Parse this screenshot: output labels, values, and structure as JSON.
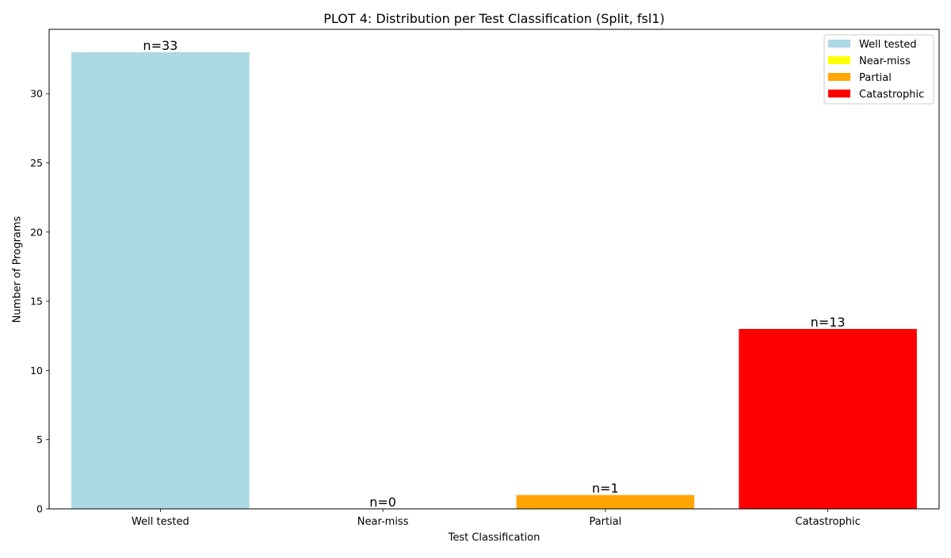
{
  "chart_data": {
    "type": "bar",
    "title": "PLOT 4: Distribution per Test Classification (Split, fsl1)",
    "xlabel": "Test Classification",
    "ylabel": "Number of Programs",
    "categories": [
      "Well tested",
      "Near-miss",
      "Partial",
      "Catastrophic"
    ],
    "values": [
      33,
      0,
      1,
      13
    ],
    "bar_labels": [
      "n=33",
      "n=0",
      "n=1",
      "n=13"
    ],
    "colors": [
      "#add8e6",
      "#ffff00",
      "#ffa500",
      "#ff0000"
    ],
    "ylim": [
      0,
      34.65
    ],
    "yticks": [
      0,
      5,
      10,
      15,
      20,
      25,
      30
    ],
    "legend": {
      "placement": "top-right",
      "entries": [
        {
          "label": "Well tested",
          "color": "#add8e6"
        },
        {
          "label": "Near-miss",
          "color": "#ffff00"
        },
        {
          "label": "Partial",
          "color": "#ffa500"
        },
        {
          "label": "Catastrophic",
          "color": "#ff0000"
        }
      ]
    },
    "grid": false
  }
}
